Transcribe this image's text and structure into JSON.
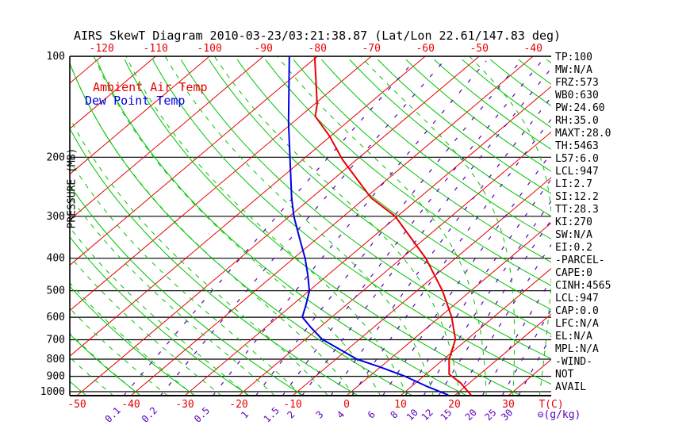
{
  "title": "AIRS SkewT Diagram 2010-03-23/03:21:38.87 (Lat/Lon 22.61/147.83 deg)",
  "legend": {
    "temp": "Ambient Air Temp",
    "dew": "Dew Point Temp"
  },
  "axes": {
    "pressure_label": "PRESSURE (MB)",
    "pressure_ticks": [
      100,
      200,
      300,
      400,
      500,
      600,
      700,
      800,
      900,
      1000
    ],
    "top_temp_ticks": [
      -120,
      -110,
      -100,
      -90,
      -80,
      -70,
      -60,
      -50,
      -40
    ],
    "bottom_temp_ticks": [
      -50,
      -40,
      -30,
      -20,
      -10,
      0,
      10,
      20,
      30
    ],
    "temp_unit_label": "T(C)",
    "mixing_ratio_ticks": [
      0.1,
      0.2,
      0.5,
      1,
      1.5,
      2,
      3,
      4,
      6,
      8,
      10,
      12,
      15,
      20,
      25,
      30
    ],
    "mixing_ratio_unit_label": "⊖(g/kg)"
  },
  "panel": {
    "rows": [
      "TP:100",
      "MW:N/A",
      "FRZ:573",
      "WB0:630",
      "PW:24.60",
      "RH:35.0",
      "MAXT:28.0",
      "TH:5463",
      "L57:6.0",
      "LCL:947",
      "LI:2.7",
      "SI:12.2",
      "TT:28.3",
      "KI:270",
      "SW:N/A",
      "EI:0.2",
      "-PARCEL-",
      "CAPE:0",
      "CINH:4565",
      "LCL:947",
      "CAP:0.0",
      "LFC:N/A",
      "EL:N/A",
      "MPL:N/A",
      "-WIND-",
      "NOT",
      "AVAIL"
    ]
  },
  "colors": {
    "isotherm": "#e80000",
    "dry_adiabat": "#00c400",
    "moist_adiabat": "#00c400",
    "mixing_ratio": "#5c00b8",
    "temperature_profile": "#e80000",
    "dewpoint_profile": "#0000e0",
    "pressure_line": "#000000",
    "top_label": "#e80000",
    "bottom_label": "#e80000",
    "mixing_label": "#5c00b8"
  },
  "chart_data": {
    "type": "line",
    "title": "AIRS SkewT Diagram 2010-03-23/03:21:38.87 (Lat/Lon 22.61/147.83 deg)",
    "xlabel": "T(C)",
    "ylabel": "PRESSURE (MB)",
    "y_scale": "log-pressure inverted (skew-T log-P diagram)",
    "x_skew": "isotherms skewed up-right",
    "pressure_range_mb": [
      100,
      1030
    ],
    "isotherms_c": [
      -160,
      -150,
      -140,
      -130,
      -120,
      -110,
      -100,
      -90,
      -80,
      -70,
      -60,
      -50,
      -40,
      -30,
      -20,
      -10,
      0,
      10,
      20,
      30,
      40
    ],
    "dry_adiabats_theta_c": [
      -50,
      -40,
      -30,
      -20,
      -10,
      0,
      10,
      20,
      30,
      40,
      50,
      60,
      70,
      80,
      90,
      100,
      110,
      120,
      130,
      140,
      150,
      160,
      170,
      180
    ],
    "moist_adiabats_thetaw_c": [
      -45,
      -40,
      -35,
      -30,
      -25,
      -20,
      -15,
      -10,
      -5,
      0,
      5,
      10,
      15,
      20,
      25,
      30,
      35,
      40
    ],
    "mixing_ratio_lines_g_kg": [
      0.1,
      0.2,
      0.5,
      1,
      1.5,
      2,
      3,
      4,
      6,
      8,
      10,
      12,
      15,
      20,
      25,
      30
    ],
    "series": [
      {
        "name": "Ambient Air Temp",
        "color": "#e80000",
        "points_p_t": [
          [
            1028,
            23.2
          ],
          [
            941,
            18.3
          ],
          [
            887,
            14.3
          ],
          [
            800,
            11.0
          ],
          [
            698,
            7.8
          ],
          [
            599,
            2.2
          ],
          [
            501,
            -5.2
          ],
          [
            401,
            -15.4
          ],
          [
            300,
            -30.4
          ],
          [
            264,
            -39.0
          ],
          [
            203,
            -52.7
          ],
          [
            173,
            -60.2
          ],
          [
            151,
            -67.2
          ],
          [
            139,
            -69.5
          ],
          [
            100,
            -80.5
          ]
        ]
      },
      {
        "name": "Dew Point Temp",
        "color": "#0000e0",
        "points_p_t": [
          [
            1023,
            18.7
          ],
          [
            966,
            13.0
          ],
          [
            900,
            6.6
          ],
          [
            845,
            0.0
          ],
          [
            800,
            -6.1
          ],
          [
            698,
            -16.9
          ],
          [
            647,
            -21.3
          ],
          [
            599,
            -25.5
          ],
          [
            553,
            -27.4
          ],
          [
            501,
            -29.9
          ],
          [
            449,
            -33.7
          ],
          [
            401,
            -37.8
          ],
          [
            348,
            -43.4
          ],
          [
            300,
            -49.2
          ],
          [
            264,
            -53.7
          ],
          [
            203,
            -62.4
          ],
          [
            158,
            -70.7
          ],
          [
            132,
            -76.4
          ],
          [
            100,
            -85.2
          ]
        ]
      }
    ]
  }
}
